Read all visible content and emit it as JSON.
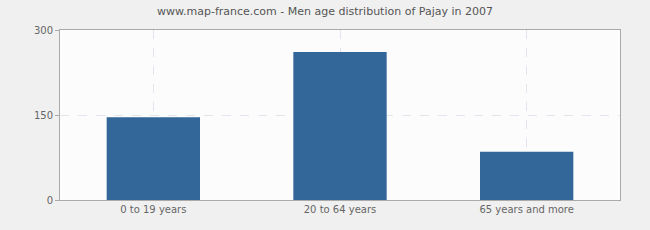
{
  "chart_data": {
    "type": "bar",
    "title": "www.map-france.com - Men age distribution of Pajay in 2007",
    "categories": [
      "0 to 19 years",
      "20 to 64 years",
      "65 years and more"
    ],
    "values": [
      146,
      261,
      85
    ],
    "color": "#336699",
    "ylim": [
      0,
      300
    ],
    "yticks": [
      0,
      150,
      300
    ],
    "grid": true
  }
}
